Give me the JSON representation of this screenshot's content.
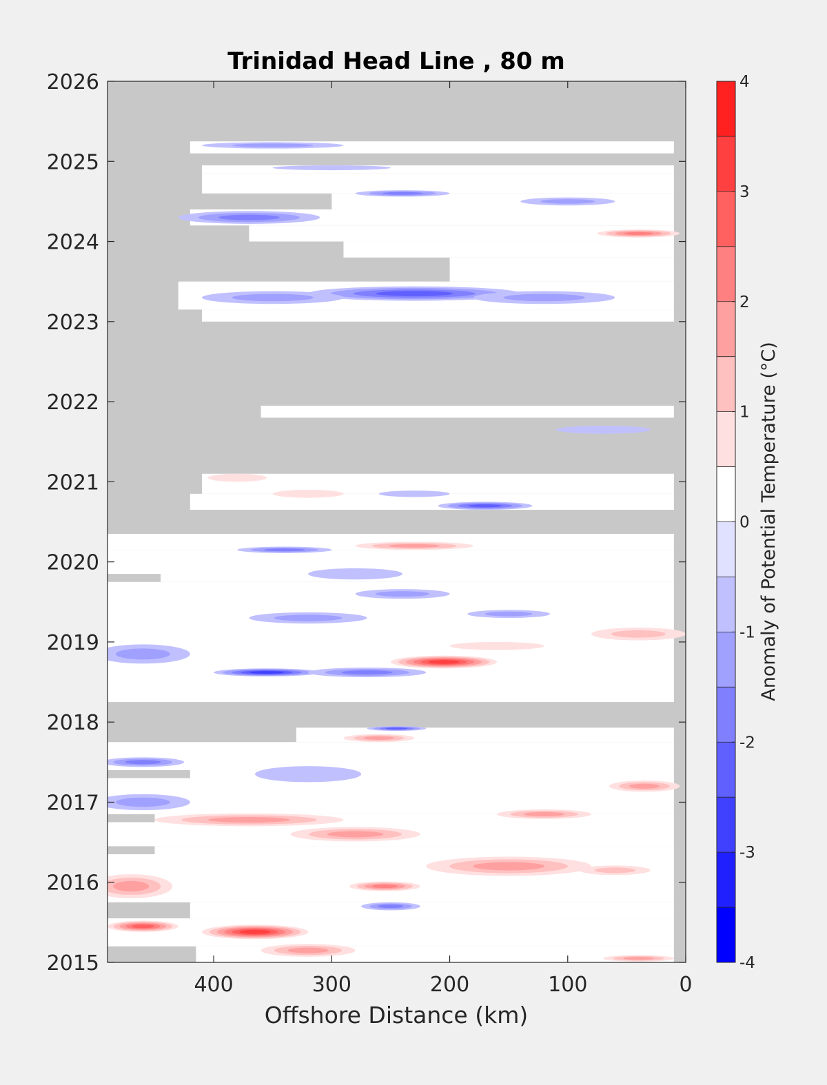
{
  "chart_data": {
    "type": "heatmap",
    "title": "Trinidad Head Line , 80 m",
    "xlabel": "Offshore Distance (km)",
    "ylabel": "",
    "xlim": [
      490,
      0
    ],
    "ylim": [
      2015,
      2026
    ],
    "x_ticks": [
      400,
      300,
      200,
      100,
      0
    ],
    "y_ticks": [
      2015,
      2016,
      2017,
      2018,
      2019,
      2020,
      2021,
      2022,
      2023,
      2024,
      2025,
      2026
    ],
    "x_tick_labels": [
      "400",
      "300",
      "200",
      "100",
      "0"
    ],
    "y_tick_labels": [
      "2015",
      "2016",
      "2017",
      "2018",
      "2019",
      "2020",
      "2021",
      "2022",
      "2023",
      "2024",
      "2025",
      "2026"
    ],
    "missing_color": "#c8c8c8",
    "colorbar": {
      "label": "Anomaly of Potential Temperature (°C)",
      "range": [
        -4,
        4
      ],
      "levels": [
        -4,
        -3.5,
        -3,
        -2.5,
        -2,
        -1.5,
        -1,
        -0.5,
        0,
        0.5,
        1,
        1.5,
        2,
        2.5,
        3,
        3.5,
        4
      ],
      "tick_values": [
        -4,
        -3,
        -2,
        -1,
        0,
        1,
        2,
        3,
        4
      ],
      "tick_labels": [
        "-4",
        "-3",
        "-2",
        "-1",
        "0",
        "1",
        "2",
        "3",
        "4"
      ],
      "colors": [
        "#0000ff",
        "#2020ff",
        "#4040ff",
        "#6060ff",
        "#8080ff",
        "#a0a0ff",
        "#c0c0ff",
        "#e0e0ff",
        "#ffffff",
        "#ffffff",
        "#ffe0e0",
        "#ffc0c0",
        "#ffa0a0",
        "#ff8080",
        "#ff6060",
        "#ff4040",
        "#ff2020",
        "#ff0000"
      ]
    },
    "valid_data_bands": [
      {
        "t_start": 2015.0,
        "t_end": 2015.2,
        "x_max": 415
      },
      {
        "t_start": 2015.2,
        "t_end": 2015.55,
        "x_max": 490
      },
      {
        "t_start": 2015.55,
        "t_end": 2015.75,
        "x_max": 420
      },
      {
        "t_start": 2015.75,
        "t_end": 2016.35,
        "x_max": 490
      },
      {
        "t_start": 2016.35,
        "t_end": 2016.45,
        "x_max": 450
      },
      {
        "t_start": 2016.45,
        "t_end": 2016.75,
        "x_max": 490
      },
      {
        "t_start": 2016.75,
        "t_end": 2016.85,
        "x_max": 450
      },
      {
        "t_start": 2016.85,
        "t_end": 2017.3,
        "x_max": 490
      },
      {
        "t_start": 2017.3,
        "t_end": 2017.4,
        "x_max": 420
      },
      {
        "t_start": 2017.4,
        "t_end": 2017.75,
        "x_max": 490
      },
      {
        "t_start": 2017.75,
        "t_end": 2017.93,
        "x_max": 330
      },
      {
        "t_start": 2018.25,
        "t_end": 2019.75,
        "x_max": 490
      },
      {
        "t_start": 2019.75,
        "t_end": 2019.85,
        "x_max": 445
      },
      {
        "t_start": 2019.85,
        "t_end": 2019.95,
        "x_max": 490
      },
      {
        "t_start": 2019.95,
        "t_end": 2020.15,
        "x_max": 490
      },
      {
        "t_start": 2020.15,
        "t_end": 2020.35,
        "x_max": 490
      },
      {
        "t_start": 2020.65,
        "t_end": 2020.85,
        "x_max": 420
      },
      {
        "t_start": 2020.85,
        "t_end": 2021.1,
        "x_max": 410
      },
      {
        "t_start": 2021.8,
        "t_end": 2021.95,
        "x_max": 360
      },
      {
        "t_start": 2023.0,
        "t_end": 2023.15,
        "x_max": 410
      },
      {
        "t_start": 2023.15,
        "t_end": 2023.5,
        "x_max": 430
      },
      {
        "t_start": 2023.5,
        "t_end": 2023.8,
        "x_max": 200
      },
      {
        "t_start": 2023.8,
        "t_end": 2024.0,
        "x_max": 290
      },
      {
        "t_start": 2024.0,
        "t_end": 2024.2,
        "x_max": 370
      },
      {
        "t_start": 2024.2,
        "t_end": 2024.4,
        "x_max": 420
      },
      {
        "t_start": 2024.4,
        "t_end": 2024.6,
        "x_max": 300
      },
      {
        "t_start": 2024.6,
        "t_end": 2024.85,
        "x_max": 410
      },
      {
        "t_start": 2024.85,
        "t_end": 2024.95,
        "x_max": 410
      },
      {
        "t_start": 2025.1,
        "t_end": 2025.25,
        "x_max": 420
      }
    ],
    "anomaly_features": [
      {
        "x": 460,
        "t": 2015.45,
        "rx": 30,
        "rt": 0.07,
        "value": 3.2
      },
      {
        "x": 365,
        "t": 2015.38,
        "rx": 45,
        "rt": 0.09,
        "value": 3.6
      },
      {
        "x": 320,
        "t": 2015.15,
        "rx": 40,
        "rt": 0.08,
        "value": 2.1
      },
      {
        "x": 250,
        "t": 2015.7,
        "rx": 25,
        "rt": 0.05,
        "value": -2.1
      },
      {
        "x": 40,
        "t": 2015.05,
        "rx": 30,
        "rt": 0.04,
        "value": 2.1
      },
      {
        "x": 470,
        "t": 2015.95,
        "rx": 35,
        "rt": 0.15,
        "value": 2.2
      },
      {
        "x": 255,
        "t": 2015.95,
        "rx": 30,
        "rt": 0.06,
        "value": 2.5
      },
      {
        "x": 150,
        "t": 2016.2,
        "rx": 70,
        "rt": 0.12,
        "value": 2.2
      },
      {
        "x": 60,
        "t": 2016.15,
        "rx": 30,
        "rt": 0.06,
        "value": 1.6
      },
      {
        "x": 280,
        "t": 2016.6,
        "rx": 55,
        "rt": 0.09,
        "value": 2.4
      },
      {
        "x": 370,
        "t": 2016.78,
        "rx": 80,
        "rt": 0.08,
        "value": 2.0
      },
      {
        "x": 120,
        "t": 2016.85,
        "rx": 40,
        "rt": 0.06,
        "value": 2.3
      },
      {
        "x": 35,
        "t": 2017.2,
        "rx": 30,
        "rt": 0.07,
        "value": 2.3
      },
      {
        "x": 460,
        "t": 2017.0,
        "rx": 40,
        "rt": 0.1,
        "value": -1.6
      },
      {
        "x": 460,
        "t": 2017.5,
        "rx": 35,
        "rt": 0.06,
        "value": -2.0
      },
      {
        "x": 260,
        "t": 2017.8,
        "rx": 30,
        "rt": 0.05,
        "value": 2.1
      },
      {
        "x": 245,
        "t": 2017.92,
        "rx": 25,
        "rt": 0.03,
        "value": -2.6
      },
      {
        "x": 320,
        "t": 2017.35,
        "rx": 45,
        "rt": 0.1,
        "value": -1.2
      },
      {
        "x": 355,
        "t": 2018.62,
        "rx": 45,
        "rt": 0.05,
        "value": -3.1
      },
      {
        "x": 270,
        "t": 2018.62,
        "rx": 50,
        "rt": 0.06,
        "value": -2.1
      },
      {
        "x": 205,
        "t": 2018.75,
        "rx": 45,
        "rt": 0.08,
        "value": 3.6
      },
      {
        "x": 160,
        "t": 2018.95,
        "rx": 40,
        "rt": 0.05,
        "value": 1.2
      },
      {
        "x": 40,
        "t": 2019.1,
        "rx": 40,
        "rt": 0.08,
        "value": 1.8
      },
      {
        "x": 460,
        "t": 2018.85,
        "rx": 40,
        "rt": 0.12,
        "value": -1.6
      },
      {
        "x": 320,
        "t": 2019.3,
        "rx": 50,
        "rt": 0.07,
        "value": -1.6
      },
      {
        "x": 150,
        "t": 2019.35,
        "rx": 35,
        "rt": 0.05,
        "value": -1.7
      },
      {
        "x": 280,
        "t": 2019.85,
        "rx": 40,
        "rt": 0.07,
        "value": -1.3
      },
      {
        "x": 240,
        "t": 2019.6,
        "rx": 40,
        "rt": 0.06,
        "value": -1.6
      },
      {
        "x": 230,
        "t": 2020.2,
        "rx": 50,
        "rt": 0.05,
        "value": 2.0
      },
      {
        "x": 340,
        "t": 2020.15,
        "rx": 40,
        "rt": 0.04,
        "value": -2.1
      },
      {
        "x": 170,
        "t": 2020.7,
        "rx": 40,
        "rt": 0.05,
        "value": -2.6
      },
      {
        "x": 320,
        "t": 2020.85,
        "rx": 30,
        "rt": 0.05,
        "value": 1.2
      },
      {
        "x": 380,
        "t": 2021.05,
        "rx": 25,
        "rt": 0.05,
        "value": 1.3
      },
      {
        "x": 230,
        "t": 2020.85,
        "rx": 30,
        "rt": 0.04,
        "value": -1.1
      },
      {
        "x": 70,
        "t": 2021.65,
        "rx": 40,
        "rt": 0.05,
        "value": -1.2
      },
      {
        "x": 230,
        "t": 2023.35,
        "rx": 90,
        "rt": 0.09,
        "value": -2.8
      },
      {
        "x": 350,
        "t": 2023.3,
        "rx": 60,
        "rt": 0.08,
        "value": -1.7
      },
      {
        "x": 120,
        "t": 2023.3,
        "rx": 60,
        "rt": 0.08,
        "value": -1.7
      },
      {
        "x": 40,
        "t": 2024.1,
        "rx": 35,
        "rt": 0.05,
        "value": 2.6
      },
      {
        "x": 370,
        "t": 2024.3,
        "rx": 60,
        "rt": 0.08,
        "value": -2.1
      },
      {
        "x": 240,
        "t": 2024.6,
        "rx": 40,
        "rt": 0.04,
        "value": -2.2
      },
      {
        "x": 100,
        "t": 2024.5,
        "rx": 40,
        "rt": 0.05,
        "value": -1.6
      },
      {
        "x": 350,
        "t": 2025.2,
        "rx": 60,
        "rt": 0.04,
        "value": -1.6
      },
      {
        "x": 300,
        "t": 2024.92,
        "rx": 50,
        "rt": 0.03,
        "value": -1.2
      }
    ]
  }
}
